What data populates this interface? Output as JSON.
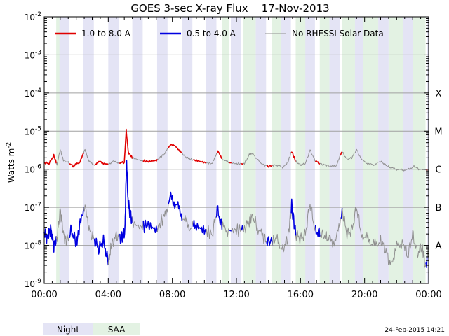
{
  "chart_data": {
    "type": "line",
    "title": "GOES 3-sec X-ray Flux    17-Nov-2013",
    "ylabel": "Watts m",
    "ylabel_exp": "-2",
    "yscale": "log",
    "ylim": [
      1e-09,
      0.01
    ],
    "xlim_hours": [
      0,
      24
    ],
    "y_ticks": [
      {
        "value": 0.01,
        "base": "10",
        "exp": "-2"
      },
      {
        "value": 0.001,
        "base": "10",
        "exp": "-3"
      },
      {
        "value": 0.0001,
        "base": "10",
        "exp": "-4"
      },
      {
        "value": 1e-05,
        "base": "10",
        "exp": "-5"
      },
      {
        "value": 1e-06,
        "base": "10",
        "exp": "-6"
      },
      {
        "value": 1e-07,
        "base": "10",
        "exp": "-7"
      },
      {
        "value": 1e-08,
        "base": "10",
        "exp": "-8"
      },
      {
        "value": 1e-09,
        "base": "10",
        "exp": "-9"
      }
    ],
    "x_ticks": [
      {
        "hour": 0,
        "label": "00:00"
      },
      {
        "hour": 4,
        "label": "04:00"
      },
      {
        "hour": 8,
        "label": "08:00"
      },
      {
        "hour": 12,
        "label": "12:00"
      },
      {
        "hour": 16,
        "label": "16:00"
      },
      {
        "hour": 20,
        "label": "20:00"
      },
      {
        "hour": 24,
        "label": "00:00"
      }
    ],
    "flare_classes": [
      {
        "label": "X",
        "value": 0.0001
      },
      {
        "label": "M",
        "value": 1e-05
      },
      {
        "label": "C",
        "value": 1e-06
      },
      {
        "label": "B",
        "value": 1e-07
      },
      {
        "label": "A",
        "value": 1e-08
      }
    ],
    "legend": [
      {
        "label": "1.0 to 8.0 A",
        "color": "#e00000"
      },
      {
        "label": "0.5 to 4.0 A",
        "color": "#0000e0"
      },
      {
        "label": "No RHESSI Solar Data",
        "color": "#909090"
      }
    ],
    "night_intervals_hours": [
      [
        0.9,
        1.55
      ],
      [
        2.45,
        3.1
      ],
      [
        4.0,
        4.65
      ],
      [
        5.5,
        6.15
      ],
      [
        7.05,
        7.7
      ],
      [
        8.6,
        9.25
      ],
      [
        10.1,
        10.75
      ],
      [
        11.65,
        12.3
      ],
      [
        13.2,
        13.85
      ],
      [
        14.75,
        15.4
      ],
      [
        16.25,
        16.9
      ],
      [
        17.8,
        18.45
      ],
      [
        19.35,
        20.0
      ],
      [
        20.85,
        21.5
      ],
      [
        22.4,
        23.05
      ],
      [
        23.9,
        24.0
      ]
    ],
    "saa_intervals_hours": [
      [
        0.75,
        0.95
      ],
      [
        11.1,
        11.55
      ],
      [
        12.4,
        13.2
      ],
      [
        14.2,
        14.8
      ],
      [
        15.7,
        16.3
      ],
      [
        17.2,
        17.8
      ],
      [
        18.6,
        19.4
      ],
      [
        19.9,
        20.85
      ],
      [
        21.5,
        22.4
      ],
      [
        23.0,
        23.8
      ]
    ],
    "series": [
      {
        "name": "1.0 to 8.0 A",
        "color": "#e00000",
        "gray_when_no_rhessi": true,
        "points": [
          [
            0.0,
            1.5e-06
          ],
          [
            0.3,
            1.4e-06
          ],
          [
            0.6,
            2.3e-06
          ],
          [
            0.8,
            1.3e-06
          ],
          [
            1.0,
            3.3e-06
          ],
          [
            1.2,
            1.7e-06
          ],
          [
            1.5,
            1.5e-06
          ],
          [
            1.8,
            1.2e-06
          ],
          [
            2.2,
            1.5e-06
          ],
          [
            2.55,
            3.3e-06
          ],
          [
            2.75,
            1.8e-06
          ],
          [
            3.1,
            1.3e-06
          ],
          [
            3.5,
            1.6e-06
          ],
          [
            3.9,
            1.3e-06
          ],
          [
            4.3,
            1.6e-06
          ],
          [
            4.7,
            1.5e-06
          ],
          [
            5.0,
            1.5e-06
          ],
          [
            5.12,
            1.05e-05
          ],
          [
            5.25,
            2.8e-06
          ],
          [
            5.5,
            2e-06
          ],
          [
            6.0,
            1.7e-06
          ],
          [
            6.5,
            1.6e-06
          ],
          [
            7.0,
            1.7e-06
          ],
          [
            7.5,
            2.5e-06
          ],
          [
            7.9,
            4.6e-06
          ],
          [
            8.3,
            3.7e-06
          ],
          [
            8.7,
            2.3e-06
          ],
          [
            9.0,
            1.9e-06
          ],
          [
            9.5,
            1.7e-06
          ],
          [
            10.0,
            1.5e-06
          ],
          [
            10.5,
            1.4e-06
          ],
          [
            10.85,
            3e-06
          ],
          [
            11.1,
            1.9e-06
          ],
          [
            11.5,
            1.5e-06
          ],
          [
            12.0,
            1.4e-06
          ],
          [
            12.5,
            1.4e-06
          ],
          [
            12.8,
            2.4e-06
          ],
          [
            13.0,
            2.6e-06
          ],
          [
            13.3,
            1.8e-06
          ],
          [
            13.7,
            1.3e-06
          ],
          [
            14.0,
            1.2e-06
          ],
          [
            14.5,
            1.3e-06
          ],
          [
            14.9,
            1.1e-06
          ],
          [
            15.2,
            1.5e-06
          ],
          [
            15.45,
            3e-06
          ],
          [
            15.7,
            1.6e-06
          ],
          [
            16.0,
            1.3e-06
          ],
          [
            16.3,
            1.4e-06
          ],
          [
            16.6,
            3.2e-06
          ],
          [
            16.9,
            1.7e-06
          ],
          [
            17.2,
            1.4e-06
          ],
          [
            17.5,
            1.3e-06
          ],
          [
            17.8,
            1.2e-06
          ],
          [
            18.2,
            1.2e-06
          ],
          [
            18.6,
            2.9e-06
          ],
          [
            18.9,
            1.8e-06
          ],
          [
            19.2,
            2e-06
          ],
          [
            19.5,
            3.3e-06
          ],
          [
            19.8,
            1.8e-06
          ],
          [
            20.2,
            1.4e-06
          ],
          [
            20.6,
            1.3e-06
          ],
          [
            21.0,
            1.6e-06
          ],
          [
            21.3,
            1.3e-06
          ],
          [
            21.6,
            1.1e-06
          ],
          [
            22.0,
            1e-06
          ],
          [
            22.4,
            9.5e-07
          ],
          [
            22.8,
            1e-06
          ],
          [
            23.1,
            1.2e-06
          ],
          [
            23.4,
            1e-06
          ],
          [
            24.0,
            9.5e-07
          ]
        ]
      },
      {
        "name": "0.5 to 4.0 A",
        "color": "#0000e0",
        "gray_when_no_rhessi": true,
        "points": [
          [
            0.0,
            2.2e-08
          ],
          [
            0.2,
            1.5e-08
          ],
          [
            0.4,
            2.8e-08
          ],
          [
            0.6,
            1e-08
          ],
          [
            0.8,
            1.5e-08
          ],
          [
            1.0,
            9e-08
          ],
          [
            1.2,
            2e-08
          ],
          [
            1.4,
            1.2e-08
          ],
          [
            1.7,
            2.5e-08
          ],
          [
            2.0,
            1.1e-08
          ],
          [
            2.2,
            3e-08
          ],
          [
            2.55,
            1.2e-07
          ],
          [
            2.8,
            2.5e-08
          ],
          [
            3.1,
            1.5e-08
          ],
          [
            3.4,
            8e-09
          ],
          [
            3.7,
            1.3e-08
          ],
          [
            4.0,
            3.5e-09
          ],
          [
            4.2,
            1e-08
          ],
          [
            4.5,
            1.8e-08
          ],
          [
            4.8,
            1.5e-08
          ],
          [
            5.05,
            2.5e-08
          ],
          [
            5.13,
            1.9e-06
          ],
          [
            5.25,
            1.2e-07
          ],
          [
            5.5,
            4e-08
          ],
          [
            6.0,
            3e-08
          ],
          [
            6.5,
            3.5e-08
          ],
          [
            7.0,
            2.5e-08
          ],
          [
            7.5,
            6e-08
          ],
          [
            7.9,
            1.8e-07
          ],
          [
            8.3,
            1.1e-07
          ],
          [
            8.7,
            5e-08
          ],
          [
            9.1,
            3e-08
          ],
          [
            9.5,
            3.2e-08
          ],
          [
            10.0,
            2.5e-08
          ],
          [
            10.5,
            2e-08
          ],
          [
            10.8,
            9e-08
          ],
          [
            11.1,
            3e-08
          ],
          [
            11.5,
            2.5e-08
          ],
          [
            12.0,
            2.5e-08
          ],
          [
            12.5,
            2.8e-08
          ],
          [
            12.8,
            4.5e-08
          ],
          [
            13.0,
            6e-08
          ],
          [
            13.3,
            3e-08
          ],
          [
            13.7,
            1.5e-08
          ],
          [
            14.0,
            1.2e-08
          ],
          [
            14.5,
            1.5e-08
          ],
          [
            14.9,
            8e-09
          ],
          [
            15.2,
            1.5e-08
          ],
          [
            15.45,
            1.1e-07
          ],
          [
            15.7,
            2e-08
          ],
          [
            16.0,
            1.5e-08
          ],
          [
            16.3,
            2e-08
          ],
          [
            16.6,
            1.3e-07
          ],
          [
            16.9,
            2.5e-08
          ],
          [
            17.2,
            2e-08
          ],
          [
            17.5,
            1.8e-08
          ],
          [
            17.8,
            1.5e-08
          ],
          [
            18.2,
            1.2e-08
          ],
          [
            18.6,
            9e-08
          ],
          [
            18.9,
            2e-08
          ],
          [
            19.2,
            2.5e-08
          ],
          [
            19.5,
            1e-07
          ],
          [
            19.8,
            2e-08
          ],
          [
            20.2,
            1.5e-08
          ],
          [
            20.6,
            1e-08
          ],
          [
            21.0,
            1.4e-08
          ],
          [
            21.3,
            8e-09
          ],
          [
            21.6,
            3e-09
          ],
          [
            22.0,
            9e-09
          ],
          [
            22.4,
            1.3e-08
          ],
          [
            22.7,
            5e-09
          ],
          [
            23.0,
            2e-08
          ],
          [
            23.3,
            6e-09
          ],
          [
            23.6,
            1e-08
          ],
          [
            23.8,
            2.5e-09
          ],
          [
            24.0,
            8e-09
          ]
        ]
      }
    ]
  },
  "legend_bottom": {
    "night_label": "Night",
    "saa_label": "SAA",
    "night_color": "#e4e4f5",
    "saa_color": "#e3f2e3"
  },
  "timestamp": "24-Feb-2015 14:21",
  "colors": {
    "grid": "#a0a0a0",
    "axis": "#000000",
    "night": "#e4e4f5",
    "saa": "#e3f2e3"
  }
}
